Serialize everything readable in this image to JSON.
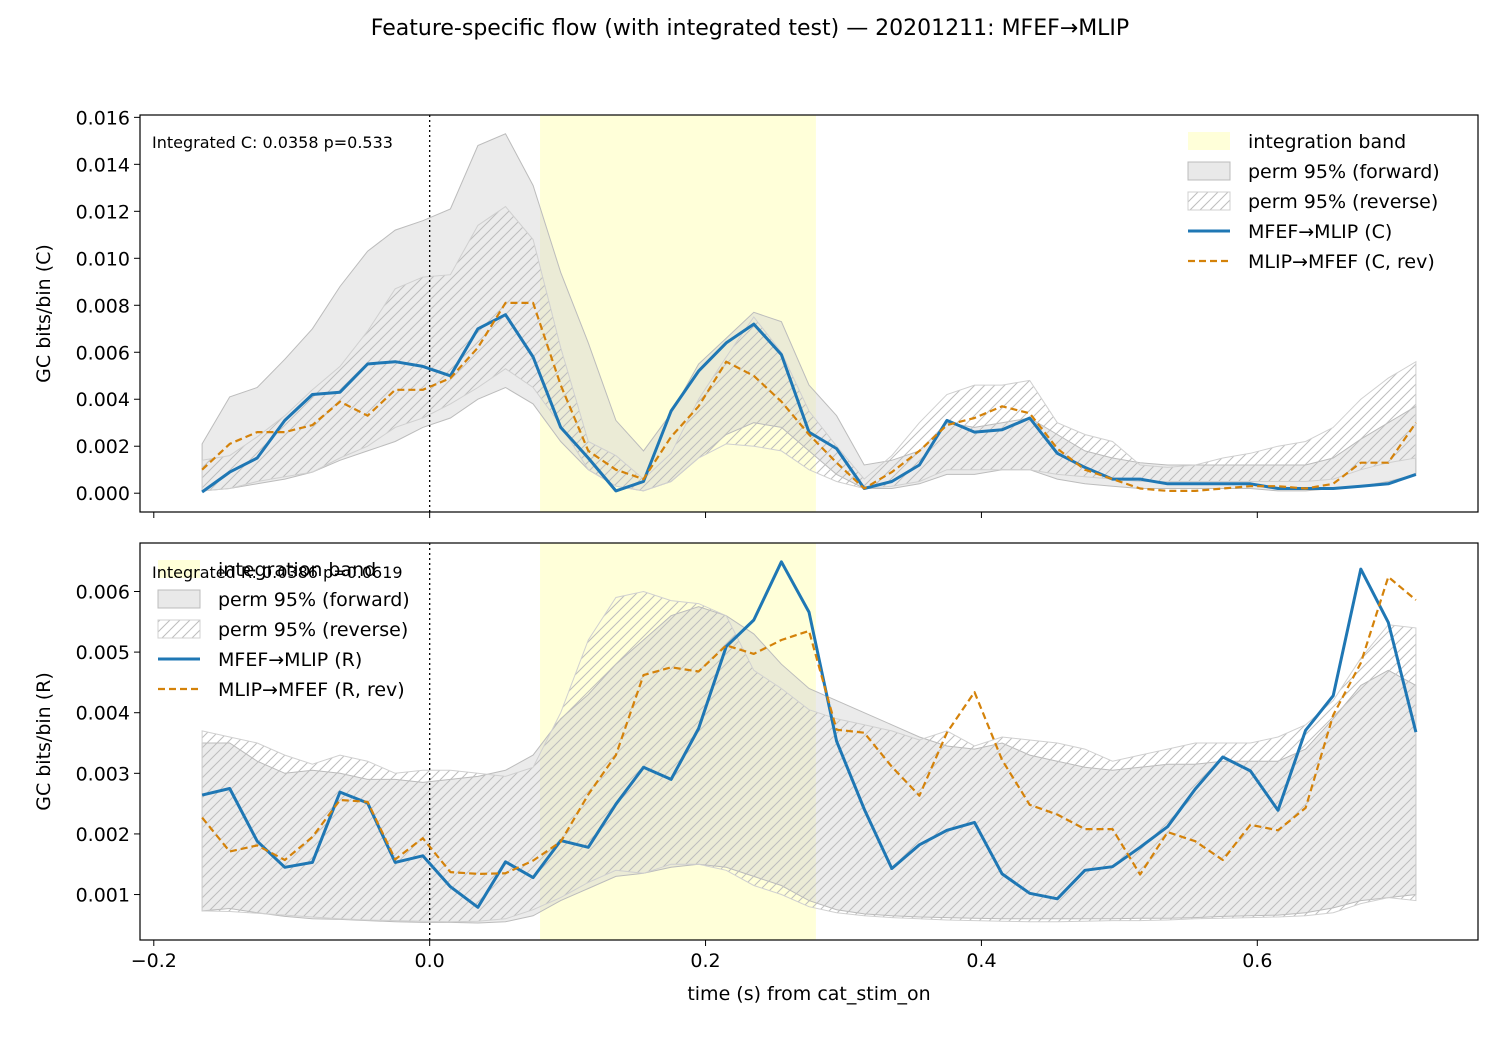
{
  "figure_title": "Feature-specific flow (with integrated test) — 20201211: MFEF→MLIP",
  "colors": {
    "band": "#ffffd9",
    "forward_fill": "#d3d3d3",
    "reverse_hatch": "#c8c8c8",
    "main_line": "#1f77b4",
    "rev_line": "#d4820a"
  },
  "chart_data": [
    {
      "type": "line",
      "ylabel": "GC bits/bin (C)",
      "xlabel": "",
      "annotation": "Integrated C: 0.0358  p=0.533",
      "xlim": [
        -0.21,
        0.76
      ],
      "ylim": [
        -0.0008,
        0.0161
      ],
      "xticks": [
        -0.2,
        0.0,
        0.2,
        0.4,
        0.6
      ],
      "xtick_labels": [],
      "yticks": [
        0.0,
        0.002,
        0.004,
        0.006,
        0.008,
        0.01,
        0.012,
        0.014,
        0.016
      ],
      "ytick_labels": [
        "0.000",
        "0.002",
        "0.004",
        "0.006",
        "0.008",
        "0.010",
        "0.012",
        "0.014",
        "0.016"
      ],
      "vline_x": 0.0,
      "integration_band": [
        0.08,
        0.28
      ],
      "legend_position": "top-right",
      "legend": [
        "integration band",
        "perm 95% (forward)",
        "perm 95% (reverse)",
        "MFEF→MLIP (C)",
        "MLIP→MFEF (C, rev)"
      ],
      "x": [
        -0.165,
        -0.145,
        -0.125,
        -0.105,
        -0.085,
        -0.065,
        -0.045,
        -0.025,
        -0.005,
        0.015,
        0.035,
        0.055,
        0.075,
        0.095,
        0.115,
        0.135,
        0.155,
        0.175,
        0.195,
        0.215,
        0.235,
        0.255,
        0.275,
        0.295,
        0.315,
        0.335,
        0.355,
        0.375,
        0.395,
        0.415,
        0.435,
        0.455,
        0.475,
        0.495,
        0.515,
        0.535,
        0.555,
        0.575,
        0.595,
        0.615,
        0.635,
        0.655,
        0.675,
        0.695,
        0.715
      ],
      "series": [
        {
          "name": "MFEF→MLIP (C)",
          "role": "main",
          "values": [
            5e-05,
            0.0009,
            0.0015,
            0.0031,
            0.0042,
            0.0043,
            0.0055,
            0.0056,
            0.0054,
            0.005,
            0.007,
            0.0076,
            0.0058,
            0.0028,
            0.0015,
            0.0001,
            0.0005,
            0.0035,
            0.0052,
            0.0064,
            0.0072,
            0.0059,
            0.0026,
            0.0019,
            0.0002,
            0.0005,
            0.0012,
            0.0031,
            0.0026,
            0.0027,
            0.0032,
            0.0017,
            0.0011,
            0.0006,
            0.0006,
            0.0004,
            0.0004,
            0.0004,
            0.0004,
            0.0002,
            0.0002,
            0.0002,
            0.0003,
            0.0004,
            0.0008
          ]
        },
        {
          "name": "MLIP→MFEF (C, rev)",
          "role": "rev",
          "values": [
            0.001,
            0.0021,
            0.0026,
            0.0026,
            0.0029,
            0.0039,
            0.0033,
            0.0044,
            0.0044,
            0.0049,
            0.0062,
            0.0081,
            0.0081,
            0.0046,
            0.0018,
            0.001,
            0.0006,
            0.0024,
            0.0037,
            0.0056,
            0.005,
            0.0039,
            0.0025,
            0.0013,
            0.0002,
            0.0009,
            0.0018,
            0.0029,
            0.0032,
            0.0037,
            0.0034,
            0.0019,
            0.001,
            0.0006,
            0.0002,
            0.0001,
            0.0001,
            0.0002,
            0.0003,
            0.0003,
            0.0002,
            0.0004,
            0.0013,
            0.0013,
            0.003
          ]
        }
      ],
      "perm_forward": {
        "lower": [
          0.0001,
          0.0002,
          0.0004,
          0.0006,
          0.0009,
          0.0014,
          0.0018,
          0.0022,
          0.0028,
          0.0032,
          0.004,
          0.0045,
          0.0038,
          0.0022,
          0.001,
          0.0003,
          0.0001,
          0.0005,
          0.0015,
          0.0025,
          0.003,
          0.0028,
          0.0018,
          0.0008,
          0.0002,
          0.0002,
          0.0004,
          0.0008,
          0.0008,
          0.001,
          0.001,
          0.0006,
          0.0004,
          0.0003,
          0.0002,
          0.0002,
          0.0002,
          0.0002,
          0.0002,
          0.0001,
          0.0001,
          0.0002,
          0.0003,
          0.0005,
          0.0008
        ],
        "upper": [
          0.0021,
          0.0041,
          0.0045,
          0.0057,
          0.007,
          0.0088,
          0.0103,
          0.0112,
          0.0116,
          0.0121,
          0.0148,
          0.0153,
          0.0131,
          0.0094,
          0.0064,
          0.0031,
          0.0018,
          0.0034,
          0.0055,
          0.0066,
          0.0077,
          0.0073,
          0.0046,
          0.0033,
          0.0012,
          0.0014,
          0.0018,
          0.003,
          0.0028,
          0.003,
          0.0032,
          0.0025,
          0.0018,
          0.0015,
          0.0013,
          0.0012,
          0.0012,
          0.0012,
          0.0012,
          0.0012,
          0.0012,
          0.0015,
          0.0023,
          0.003,
          0.0037
        ]
      },
      "perm_reverse": {
        "lower": [
          0.0001,
          0.0002,
          0.0005,
          0.0007,
          0.0009,
          0.0015,
          0.002,
          0.0028,
          0.0032,
          0.0038,
          0.0045,
          0.0053,
          0.0045,
          0.0029,
          0.001,
          0.0003,
          0.0001,
          0.0005,
          0.0015,
          0.0021,
          0.002,
          0.0018,
          0.001,
          0.0005,
          0.0002,
          0.0003,
          0.0005,
          0.001,
          0.001,
          0.001,
          0.001,
          0.0008,
          0.0007,
          0.0006,
          0.0005,
          0.0005,
          0.0005,
          0.0005,
          0.0005,
          0.0005,
          0.0005,
          0.0006,
          0.001,
          0.0013,
          0.0015
        ],
        "upper": [
          0.0014,
          0.0016,
          0.0024,
          0.0033,
          0.0044,
          0.0054,
          0.0069,
          0.0087,
          0.0092,
          0.0093,
          0.0114,
          0.0122,
          0.0108,
          0.0062,
          0.0022,
          0.0016,
          0.0006,
          0.0017,
          0.004,
          0.0058,
          0.0075,
          0.006,
          0.0035,
          0.002,
          0.0006,
          0.0016,
          0.003,
          0.0042,
          0.0046,
          0.0046,
          0.0048,
          0.003,
          0.0025,
          0.0022,
          0.0012,
          0.0011,
          0.0012,
          0.0015,
          0.0017,
          0.002,
          0.0022,
          0.0028,
          0.004,
          0.0049,
          0.0056
        ]
      }
    },
    {
      "type": "line",
      "ylabel": "GC bits/bin (R)",
      "xlabel": "time (s) from cat_stim_on",
      "annotation": "Integrated R: 0.0386  p=0.0619",
      "xlim": [
        -0.21,
        0.76
      ],
      "ylim": [
        0.00025,
        0.0068
      ],
      "xticks": [
        -0.2,
        0.0,
        0.2,
        0.4,
        0.6
      ],
      "xtick_labels": [
        "−0.2",
        "0.0",
        "0.2",
        "0.4",
        "0.6"
      ],
      "yticks": [
        0.001,
        0.002,
        0.003,
        0.004,
        0.005,
        0.006
      ],
      "ytick_labels": [
        "0.001",
        "0.002",
        "0.003",
        "0.004",
        "0.005",
        "0.006"
      ],
      "vline_x": 0.0,
      "integration_band": [
        0.08,
        0.28
      ],
      "legend_position": "top-left",
      "legend": [
        "integration band",
        "perm 95% (forward)",
        "perm 95% (reverse)",
        "MFEF→MLIP (R)",
        "MLIP→MFEF (R, rev)"
      ],
      "x": [
        -0.165,
        -0.145,
        -0.125,
        -0.105,
        -0.085,
        -0.065,
        -0.045,
        -0.025,
        -0.005,
        0.015,
        0.035,
        0.055,
        0.075,
        0.095,
        0.115,
        0.135,
        0.155,
        0.175,
        0.195,
        0.215,
        0.235,
        0.255,
        0.275,
        0.295,
        0.315,
        0.335,
        0.355,
        0.375,
        0.395,
        0.415,
        0.435,
        0.455,
        0.475,
        0.495,
        0.515,
        0.535,
        0.555,
        0.575,
        0.595,
        0.615,
        0.635,
        0.655,
        0.675,
        0.695,
        0.715
      ],
      "series": [
        {
          "name": "MFEF→MLIP (R)",
          "role": "main",
          "values": [
            0.00264,
            0.00275,
            0.00188,
            0.00145,
            0.00153,
            0.00269,
            0.00251,
            0.00153,
            0.00164,
            0.00113,
            0.00079,
            0.00154,
            0.00128,
            0.00189,
            0.00178,
            0.00249,
            0.0031,
            0.0029,
            0.00374,
            0.00509,
            0.00553,
            0.00649,
            0.00566,
            0.00353,
            0.00241,
            0.00143,
            0.00182,
            0.00206,
            0.00219,
            0.00134,
            0.00102,
            0.00093,
            0.0014,
            0.00146,
            0.00178,
            0.00212,
            0.00274,
            0.00327,
            0.00304,
            0.00239,
            0.00371,
            0.00428,
            0.00637,
            0.00549,
            0.00368
          ]
        },
        {
          "name": "MLIP→MFEF (R, rev)",
          "role": "rev",
          "values": [
            0.00227,
            0.00171,
            0.00181,
            0.00157,
            0.00195,
            0.00256,
            0.00253,
            0.00158,
            0.00193,
            0.00137,
            0.00134,
            0.00135,
            0.00156,
            0.00187,
            0.00265,
            0.0033,
            0.00462,
            0.00475,
            0.00468,
            0.00511,
            0.00497,
            0.0052,
            0.00535,
            0.00372,
            0.00367,
            0.00311,
            0.00263,
            0.00367,
            0.00434,
            0.00322,
            0.00248,
            0.00232,
            0.00208,
            0.00208,
            0.00133,
            0.00203,
            0.00188,
            0.00157,
            0.00215,
            0.00206,
            0.00243,
            0.00396,
            0.00482,
            0.00624,
            0.00586
          ]
        }
      ],
      "perm_forward": {
        "lower": [
          0.00073,
          0.00077,
          0.0007,
          0.00064,
          0.0006,
          0.00059,
          0.00057,
          0.00055,
          0.00054,
          0.00054,
          0.00053,
          0.00055,
          0.00065,
          0.0009,
          0.0011,
          0.0013,
          0.00135,
          0.00145,
          0.0015,
          0.00145,
          0.0013,
          0.00115,
          0.0009,
          0.00075,
          0.00068,
          0.00065,
          0.00063,
          0.00062,
          0.00061,
          0.0006,
          0.0006,
          0.0006,
          0.0006,
          0.0006,
          0.00061,
          0.00061,
          0.00062,
          0.00064,
          0.00065,
          0.00066,
          0.0007,
          0.00078,
          0.0009,
          0.00095,
          0.001
        ],
        "upper": [
          0.0035,
          0.0035,
          0.0032,
          0.003,
          0.00305,
          0.003,
          0.0029,
          0.0029,
          0.00285,
          0.0029,
          0.00295,
          0.00305,
          0.0033,
          0.0039,
          0.0043,
          0.0048,
          0.0052,
          0.0056,
          0.00575,
          0.0056,
          0.0053,
          0.0048,
          0.0044,
          0.0042,
          0.004,
          0.0038,
          0.0036,
          0.00345,
          0.0034,
          0.0035,
          0.0033,
          0.0032,
          0.0031,
          0.00305,
          0.0031,
          0.00315,
          0.00315,
          0.0032,
          0.0032,
          0.0032,
          0.0034,
          0.0039,
          0.00445,
          0.0047,
          0.00445
        ]
      },
      "perm_reverse": {
        "lower": [
          0.00073,
          0.00072,
          0.00069,
          0.00066,
          0.00063,
          0.0006,
          0.00058,
          0.00057,
          0.00056,
          0.00055,
          0.00056,
          0.0006,
          0.00075,
          0.00095,
          0.0012,
          0.0014,
          0.00135,
          0.0015,
          0.0015,
          0.0014,
          0.00115,
          0.001,
          0.0008,
          0.0007,
          0.00065,
          0.00062,
          0.0006,
          0.00058,
          0.00057,
          0.00056,
          0.00055,
          0.00055,
          0.00056,
          0.00057,
          0.00057,
          0.00058,
          0.0006,
          0.00061,
          0.00062,
          0.00063,
          0.00065,
          0.0007,
          0.00085,
          0.00095,
          0.0009
        ],
        "upper": [
          0.0037,
          0.0036,
          0.0035,
          0.0033,
          0.00315,
          0.0033,
          0.0032,
          0.003,
          0.00305,
          0.00305,
          0.003,
          0.00295,
          0.0031,
          0.004,
          0.0052,
          0.0059,
          0.006,
          0.00585,
          0.0058,
          0.0056,
          0.0047,
          0.0044,
          0.00405,
          0.0039,
          0.0038,
          0.0037,
          0.00355,
          0.0037,
          0.00345,
          0.0036,
          0.00355,
          0.0035,
          0.0034,
          0.0032,
          0.0033,
          0.0034,
          0.0035,
          0.0035,
          0.0035,
          0.0036,
          0.0038,
          0.0042,
          0.0049,
          0.00545,
          0.0054
        ]
      }
    }
  ]
}
